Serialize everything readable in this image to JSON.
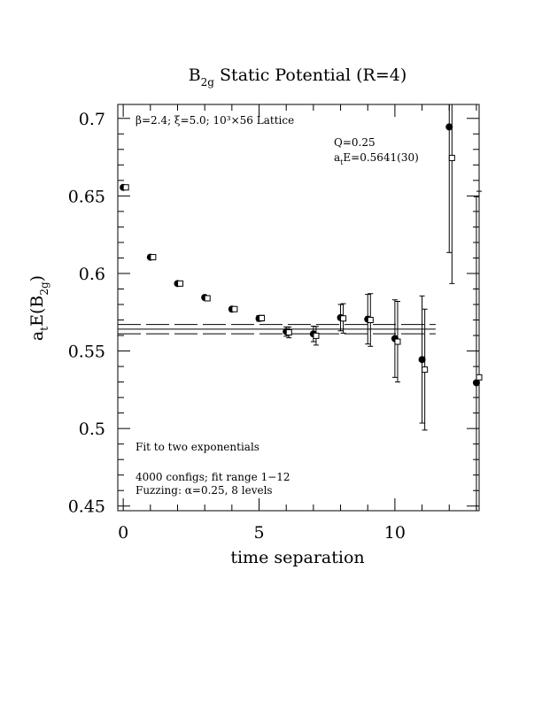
{
  "chart_data": {
    "type": "scatter",
    "title": {
      "prefix": "B",
      "sub": "2g",
      "suffix": " Static Potential (R=4)"
    },
    "xlabel": "time separation",
    "ylabel": {
      "main": "a",
      "sub1": "t",
      "mid": "E(B",
      "sub2": "2g",
      "end": ")"
    },
    "xlim": [
      -0.2,
      13.1
    ],
    "ylim": [
      0.447,
      0.709
    ],
    "x_ticks": [
      0,
      5,
      10
    ],
    "y_ticks": [
      0.45,
      0.5,
      0.55,
      0.6,
      0.65,
      0.7
    ],
    "y_tick_labels": [
      "0.45",
      "0.5",
      "0.55",
      "0.6",
      "0.65",
      "0.7"
    ],
    "x_tick_labels": [
      "0",
      "5",
      "10"
    ],
    "annotations": {
      "lattice": "β=2.4; ξ=5.0; 10³×56 Lattice",
      "q": "Q=0.25",
      "energy": {
        "prefix": "a",
        "sub": "t",
        "suffix": "E=0.5641(30)"
      },
      "fit": "Fit to two exponentials",
      "configs": "4000 configs; fit range 1−12",
      "fuzzing": "Fuzzing: α=0.25, 8 levels"
    },
    "fit_band": {
      "center": 0.5641,
      "error": 0.003,
      "x_range": [
        -0.2,
        11.5
      ]
    },
    "series": [
      {
        "marker": "filled-circle",
        "points": [
          {
            "x": 0,
            "y": 0.6555,
            "err": 0.0008
          },
          {
            "x": 1,
            "y": 0.6105,
            "err": 0.0008
          },
          {
            "x": 2,
            "y": 0.5935,
            "err": 0.0008
          },
          {
            "x": 3,
            "y": 0.5845,
            "err": 0.001
          },
          {
            "x": 4,
            "y": 0.577,
            "err": 0.0012
          },
          {
            "x": 5,
            "y": 0.571,
            "err": 0.0018
          },
          {
            "x": 6,
            "y": 0.5625,
            "err": 0.003
          },
          {
            "x": 7,
            "y": 0.561,
            "err": 0.005
          },
          {
            "x": 8,
            "y": 0.5715,
            "err": 0.0085
          },
          {
            "x": 9,
            "y": 0.5705,
            "err": 0.016
          },
          {
            "x": 10,
            "y": 0.558,
            "err": 0.025
          },
          {
            "x": 11,
            "y": 0.5445,
            "err": 0.041
          },
          {
            "x": 12,
            "y": 0.6945,
            "err": 0.081
          },
          {
            "x": 13,
            "y": 0.5295,
            "err": 0.12
          }
        ]
      },
      {
        "marker": "open-square",
        "points": [
          {
            "x": 0.1,
            "y": 0.6555,
            "err": 0.0008
          },
          {
            "x": 1.1,
            "y": 0.6105,
            "err": 0.0008
          },
          {
            "x": 2.1,
            "y": 0.5935,
            "err": 0.0008
          },
          {
            "x": 3.1,
            "y": 0.584,
            "err": 0.001
          },
          {
            "x": 4.1,
            "y": 0.577,
            "err": 0.0012
          },
          {
            "x": 5.1,
            "y": 0.5712,
            "err": 0.0018
          },
          {
            "x": 6.1,
            "y": 0.562,
            "err": 0.0035
          },
          {
            "x": 7.1,
            "y": 0.5598,
            "err": 0.006
          },
          {
            "x": 8.1,
            "y": 0.571,
            "err": 0.0095
          },
          {
            "x": 9.1,
            "y": 0.57,
            "err": 0.017
          },
          {
            "x": 10.1,
            "y": 0.556,
            "err": 0.026
          },
          {
            "x": 11.1,
            "y": 0.538,
            "err": 0.039
          },
          {
            "x": 12.1,
            "y": 0.6745,
            "err": 0.081
          },
          {
            "x": 13.1,
            "y": 0.533,
            "err": 0.12
          }
        ]
      }
    ]
  }
}
